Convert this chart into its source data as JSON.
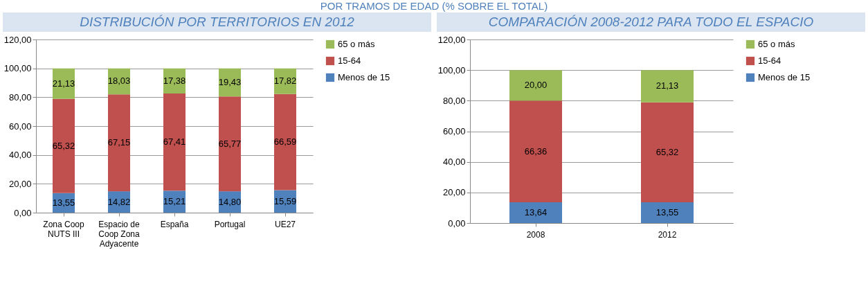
{
  "chart_data": [
    {
      "type": "bar",
      "stacked": true,
      "title": "DISTRIBUCIÓN POR TERRITORIOS EN 2012",
      "annotations": [
        "POR TRAMOS DE EDAD (% SOBRE EL TOTAL)"
      ],
      "categories": [
        "Zona Coop NUTS III",
        "Espacio de Coop Zona Adyacente",
        "España",
        "Portugal",
        "UE27"
      ],
      "series": [
        {
          "name": "Menos de 15",
          "color": "#4f81bd",
          "values": [
            13.55,
            14.82,
            15.21,
            14.8,
            15.59
          ],
          "value_labels": [
            "13,55",
            "14,82",
            "15,21",
            "14,80",
            "15,59"
          ]
        },
        {
          "name": "15-64",
          "color": "#c0504d",
          "values": [
            65.32,
            67.15,
            67.41,
            65.77,
            66.59
          ],
          "value_labels": [
            "65,32",
            "67,15",
            "67,41",
            "65,77",
            "66,59"
          ]
        },
        {
          "name": "65 o más",
          "color": "#9bbb59",
          "values": [
            21.13,
            18.03,
            17.38,
            19.43,
            17.82
          ],
          "value_labels": [
            "21,13",
            "18,03",
            "17,38",
            "19,43",
            "17,82"
          ]
        }
      ],
      "ylim": [
        0,
        120
      ],
      "yticks": [
        {
          "value": 0,
          "label": "0,00"
        },
        {
          "value": 20,
          "label": "20,00"
        },
        {
          "value": 40,
          "label": "40,00"
        },
        {
          "value": 60,
          "label": "60,00"
        },
        {
          "value": 80,
          "label": "80,00"
        },
        {
          "value": 100,
          "label": "100,00"
        },
        {
          "value": 120,
          "label": "120,00"
        }
      ],
      "grid": "y",
      "legend": "right"
    },
    {
      "type": "bar",
      "stacked": true,
      "title": "COMPARACIÓN 2008-2012 PARA TODO EL ESPACIO",
      "categories": [
        "2008",
        "2012"
      ],
      "series": [
        {
          "name": "Menos de 15",
          "color": "#4f81bd",
          "values": [
            13.64,
            13.55
          ],
          "value_labels": [
            "13,64",
            "13,55"
          ]
        },
        {
          "name": "15-64",
          "color": "#c0504d",
          "values": [
            66.36,
            65.32
          ],
          "value_labels": [
            "66,36",
            "65,32"
          ]
        },
        {
          "name": "65 o más",
          "color": "#9bbb59",
          "values": [
            20.0,
            21.13
          ],
          "value_labels": [
            "20,00",
            "21,13"
          ]
        }
      ],
      "ylim": [
        0,
        120
      ],
      "yticks": [
        {
          "value": 0,
          "label": "0,00"
        },
        {
          "value": 20,
          "label": "20,00"
        },
        {
          "value": 40,
          "label": "40,00"
        },
        {
          "value": 60,
          "label": "60,00"
        },
        {
          "value": 80,
          "label": "80,00"
        },
        {
          "value": 100,
          "label": "100,00"
        },
        {
          "value": 120,
          "label": "120,00"
        }
      ],
      "grid": "y",
      "legend": "right"
    }
  ]
}
